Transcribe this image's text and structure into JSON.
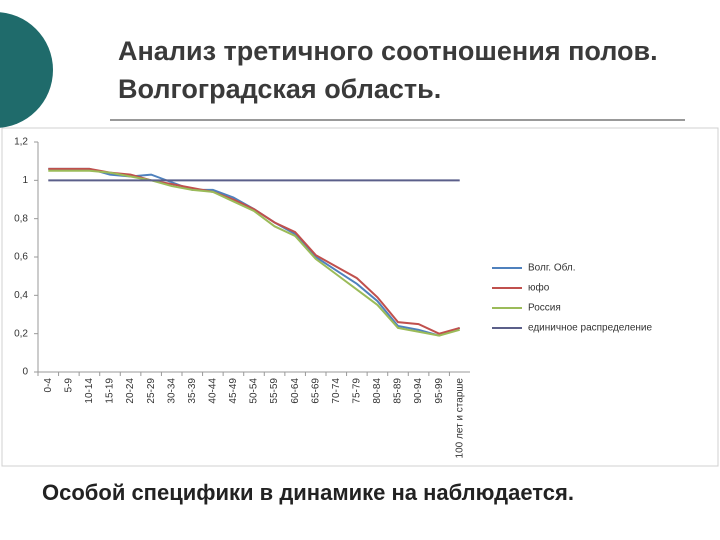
{
  "slide": {
    "title": "Анализ третичного соотношения полов. Волгоградская область.",
    "text": "Особой специфики в динамике на наблюдается."
  },
  "chart_data": {
    "type": "line",
    "categories": [
      "0-4",
      "5-9",
      "10-14",
      "15-19",
      "20-24",
      "25-29",
      "30-34",
      "35-39",
      "40-44",
      "45-49",
      "50-54",
      "55-59",
      "60-64",
      "65-69",
      "70-74",
      "75-79",
      "80-84",
      "85-89",
      "90-94",
      "95-99",
      "100 лет и старше"
    ],
    "series": [
      {
        "name": "Волг. Обл.",
        "color": "#4f81bd",
        "values": [
          1.06,
          1.06,
          1.06,
          1.03,
          1.02,
          1.03,
          0.99,
          0.95,
          0.95,
          0.91,
          0.85,
          0.78,
          0.72,
          0.6,
          0.53,
          0.46,
          0.37,
          0.24,
          0.22,
          0.19,
          0.23
        ]
      },
      {
        "name": "юфо",
        "color": "#c0504d",
        "values": [
          1.06,
          1.06,
          1.06,
          1.04,
          1.03,
          1.0,
          0.98,
          0.96,
          0.94,
          0.9,
          0.85,
          0.78,
          0.73,
          0.61,
          0.55,
          0.49,
          0.39,
          0.26,
          0.25,
          0.2,
          0.23
        ]
      },
      {
        "name": "Россия",
        "color": "#9bbb59",
        "values": [
          1.05,
          1.05,
          1.05,
          1.04,
          1.02,
          1.0,
          0.97,
          0.95,
          0.94,
          0.89,
          0.84,
          0.76,
          0.71,
          0.59,
          0.51,
          0.43,
          0.35,
          0.23,
          0.21,
          0.19,
          0.22
        ]
      },
      {
        "name": "единичное распределение",
        "color": "#5b5f8a",
        "values": [
          1,
          1,
          1,
          1,
          1,
          1,
          1,
          1,
          1,
          1,
          1,
          1,
          1,
          1,
          1,
          1,
          1,
          1,
          1,
          1,
          1
        ]
      }
    ],
    "ylim": [
      0,
      1.2
    ],
    "yticks": [
      0,
      {
        "value": 0.2,
        "label": "0,2"
      },
      {
        "value": 0.4,
        "label": "0,4"
      },
      {
        "value": 0.6,
        "label": "0,6"
      },
      {
        "value": 0.8,
        "label": "0,8"
      },
      1,
      {
        "value": 1.2,
        "label": "1,2"
      }
    ],
    "legend": "right"
  }
}
